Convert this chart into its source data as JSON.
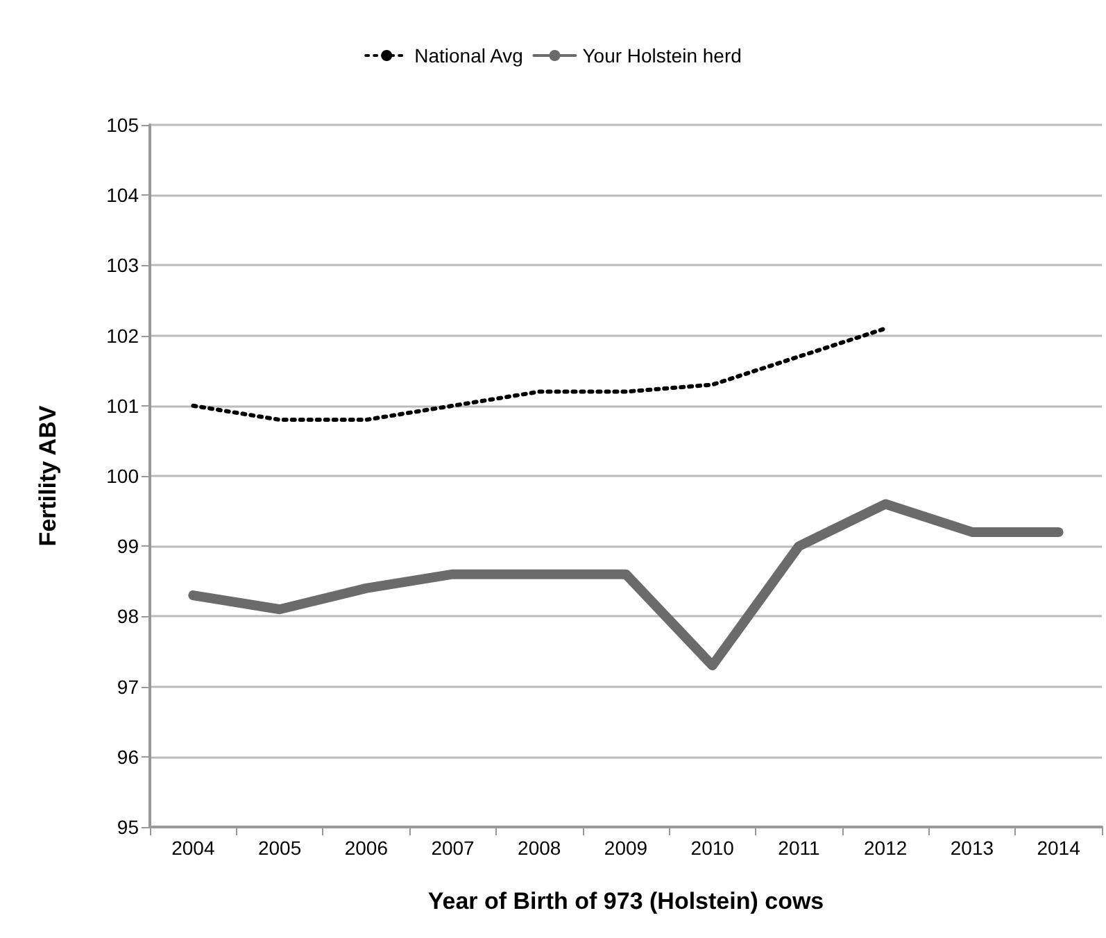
{
  "chart_data": {
    "type": "line",
    "xlabel": "Year of Birth of 973 (Holstein) cows",
    "ylabel": "Fertility ABV",
    "categories": [
      "2004",
      "2005",
      "2006",
      "2007",
      "2008",
      "2009",
      "2010",
      "2011",
      "2012",
      "2013",
      "2014"
    ],
    "series": [
      {
        "name": "National Avg",
        "color": "#000000",
        "line_style": "dotted",
        "values": [
          101.0,
          100.8,
          100.8,
          101.0,
          101.2,
          101.2,
          101.3,
          101.7,
          102.1,
          null,
          null
        ]
      },
      {
        "name": "Your Holstein herd",
        "color": "#6b6b6b",
        "line_style": "solid",
        "values": [
          98.3,
          98.1,
          98.4,
          98.6,
          98.6,
          98.6,
          97.3,
          99.0,
          99.6,
          99.2,
          99.2
        ]
      }
    ],
    "ylim": [
      95,
      105
    ],
    "yticks": [
      95,
      96,
      97,
      98,
      99,
      100,
      101,
      102,
      103,
      104,
      105
    ],
    "grid": "y",
    "legend": "top",
    "marker": "none"
  }
}
